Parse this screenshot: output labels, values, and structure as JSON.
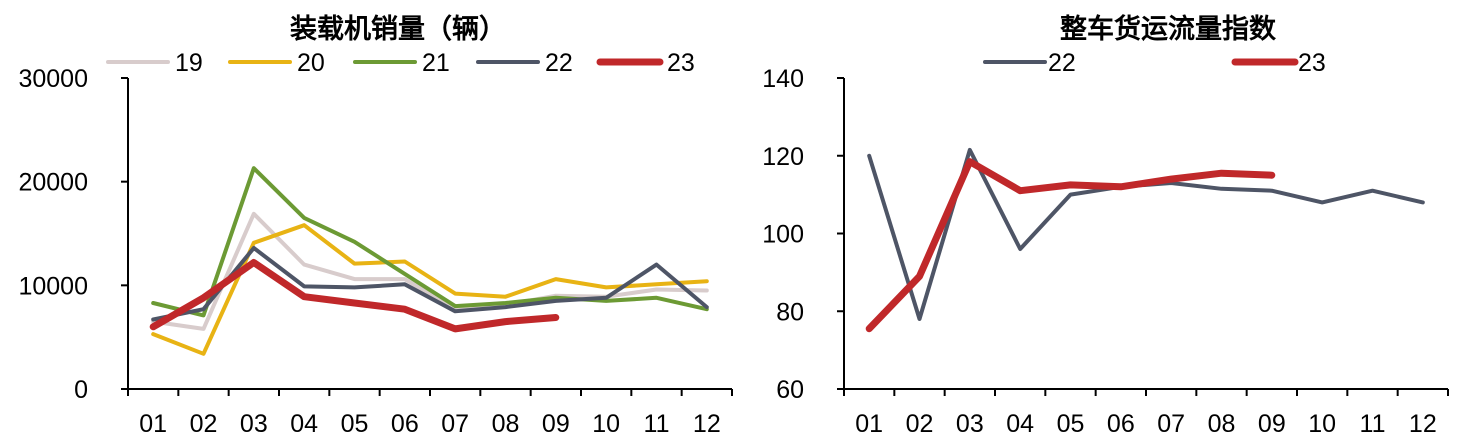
{
  "chart_data": [
    {
      "type": "line",
      "title": "装载机销量（辆）",
      "categories": [
        "01",
        "02",
        "03",
        "04",
        "05",
        "06",
        "07",
        "08",
        "09",
        "10",
        "11",
        "12"
      ],
      "ylim": [
        0,
        30000
      ],
      "yticks": [
        "0",
        "10000",
        "20000",
        "30000"
      ],
      "grid": false,
      "legend_position": "top",
      "series": [
        {
          "name": "19",
          "color": "#d8cccc",
          "width": 4,
          "values": [
            6500,
            5800,
            16900,
            12000,
            10600,
            10600,
            7700,
            8100,
            9000,
            8900,
            9600,
            9500
          ]
        },
        {
          "name": "20",
          "color": "#e8b314",
          "width": 4,
          "values": [
            5300,
            3400,
            14100,
            15800,
            12100,
            12300,
            9200,
            8900,
            10600,
            9800,
            10100,
            10400
          ]
        },
        {
          "name": "21",
          "color": "#6c9a34",
          "width": 4,
          "values": [
            8300,
            7100,
            21300,
            16500,
            14200,
            11100,
            8000,
            8300,
            8800,
            8500,
            8800,
            7700
          ]
        },
        {
          "name": "22",
          "color": "#4e5566",
          "width": 4,
          "values": [
            6700,
            7700,
            13600,
            9900,
            9800,
            10100,
            7500,
            7900,
            8500,
            8800,
            12000,
            7900
          ]
        },
        {
          "name": "23",
          "color": "#c0282a",
          "width": 7,
          "values": [
            6000,
            8800,
            12200,
            8900,
            8300,
            7700,
            5800,
            6500,
            6900,
            null,
            null,
            null
          ]
        }
      ]
    },
    {
      "type": "line",
      "title": "整车货运流量指数",
      "categories": [
        "01",
        "02",
        "03",
        "04",
        "05",
        "06",
        "07",
        "08",
        "09",
        "10",
        "11",
        "12"
      ],
      "ylim": [
        60,
        140
      ],
      "yticks": [
        "60",
        "80",
        "100",
        "120",
        "140"
      ],
      "grid": false,
      "legend_position": "top",
      "series": [
        {
          "name": "22",
          "color": "#4e5566",
          "width": 4,
          "values": [
            120,
            78,
            121.5,
            96,
            110,
            112,
            113,
            111.5,
            111,
            108,
            111,
            108
          ]
        },
        {
          "name": "23",
          "color": "#c0282a",
          "width": 7,
          "values": [
            75.5,
            89,
            118.5,
            111,
            112.5,
            112,
            114,
            115.5,
            115,
            null,
            null,
            null
          ]
        }
      ]
    }
  ]
}
